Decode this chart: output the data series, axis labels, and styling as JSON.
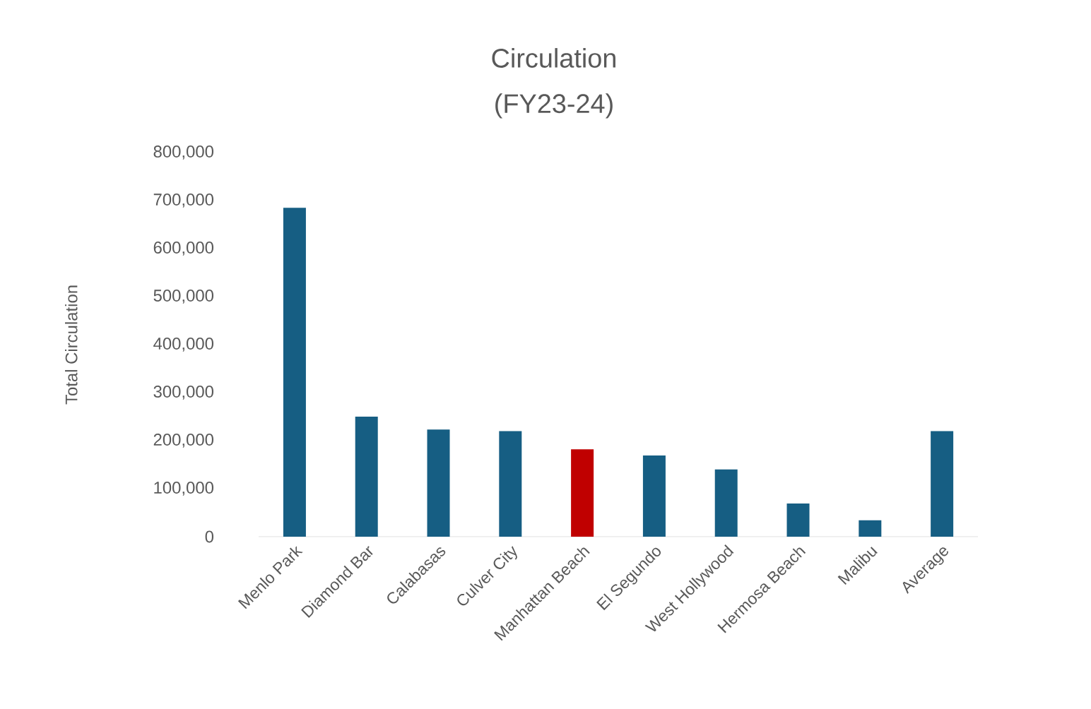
{
  "chart_data": {
    "type": "bar",
    "title": "Circulation",
    "subtitle": "(FY23-24)",
    "ylabel": "Total Circulation",
    "categories": [
      "Menlo Park",
      "Diamond Bar",
      "Calabasas",
      "Culver City",
      "Manhattan Beach",
      "El Segundo",
      "West Hollywood",
      "Hermosa Beach",
      "Malibu",
      "Average"
    ],
    "values": [
      685000,
      250000,
      223000,
      220000,
      182000,
      169000,
      140000,
      69000,
      34000,
      220000
    ],
    "colors": [
      "#165e83",
      "#165e83",
      "#165e83",
      "#165e83",
      "#c00000",
      "#165e83",
      "#165e83",
      "#165e83",
      "#165e83",
      "#165e83"
    ],
    "ylim": [
      0,
      800000
    ],
    "yticks": [
      {
        "value": 0,
        "label": "0"
      },
      {
        "value": 100000,
        "label": "100,000"
      },
      {
        "value": 200000,
        "label": "200,000"
      },
      {
        "value": 300000,
        "label": "300,000"
      },
      {
        "value": 400000,
        "label": "400,000"
      },
      {
        "value": 500000,
        "label": "500,000"
      },
      {
        "value": 600000,
        "label": "600,000"
      },
      {
        "value": 700000,
        "label": "700,000"
      },
      {
        "value": 800000,
        "label": "800,000"
      }
    ],
    "orientation": "vertical"
  }
}
